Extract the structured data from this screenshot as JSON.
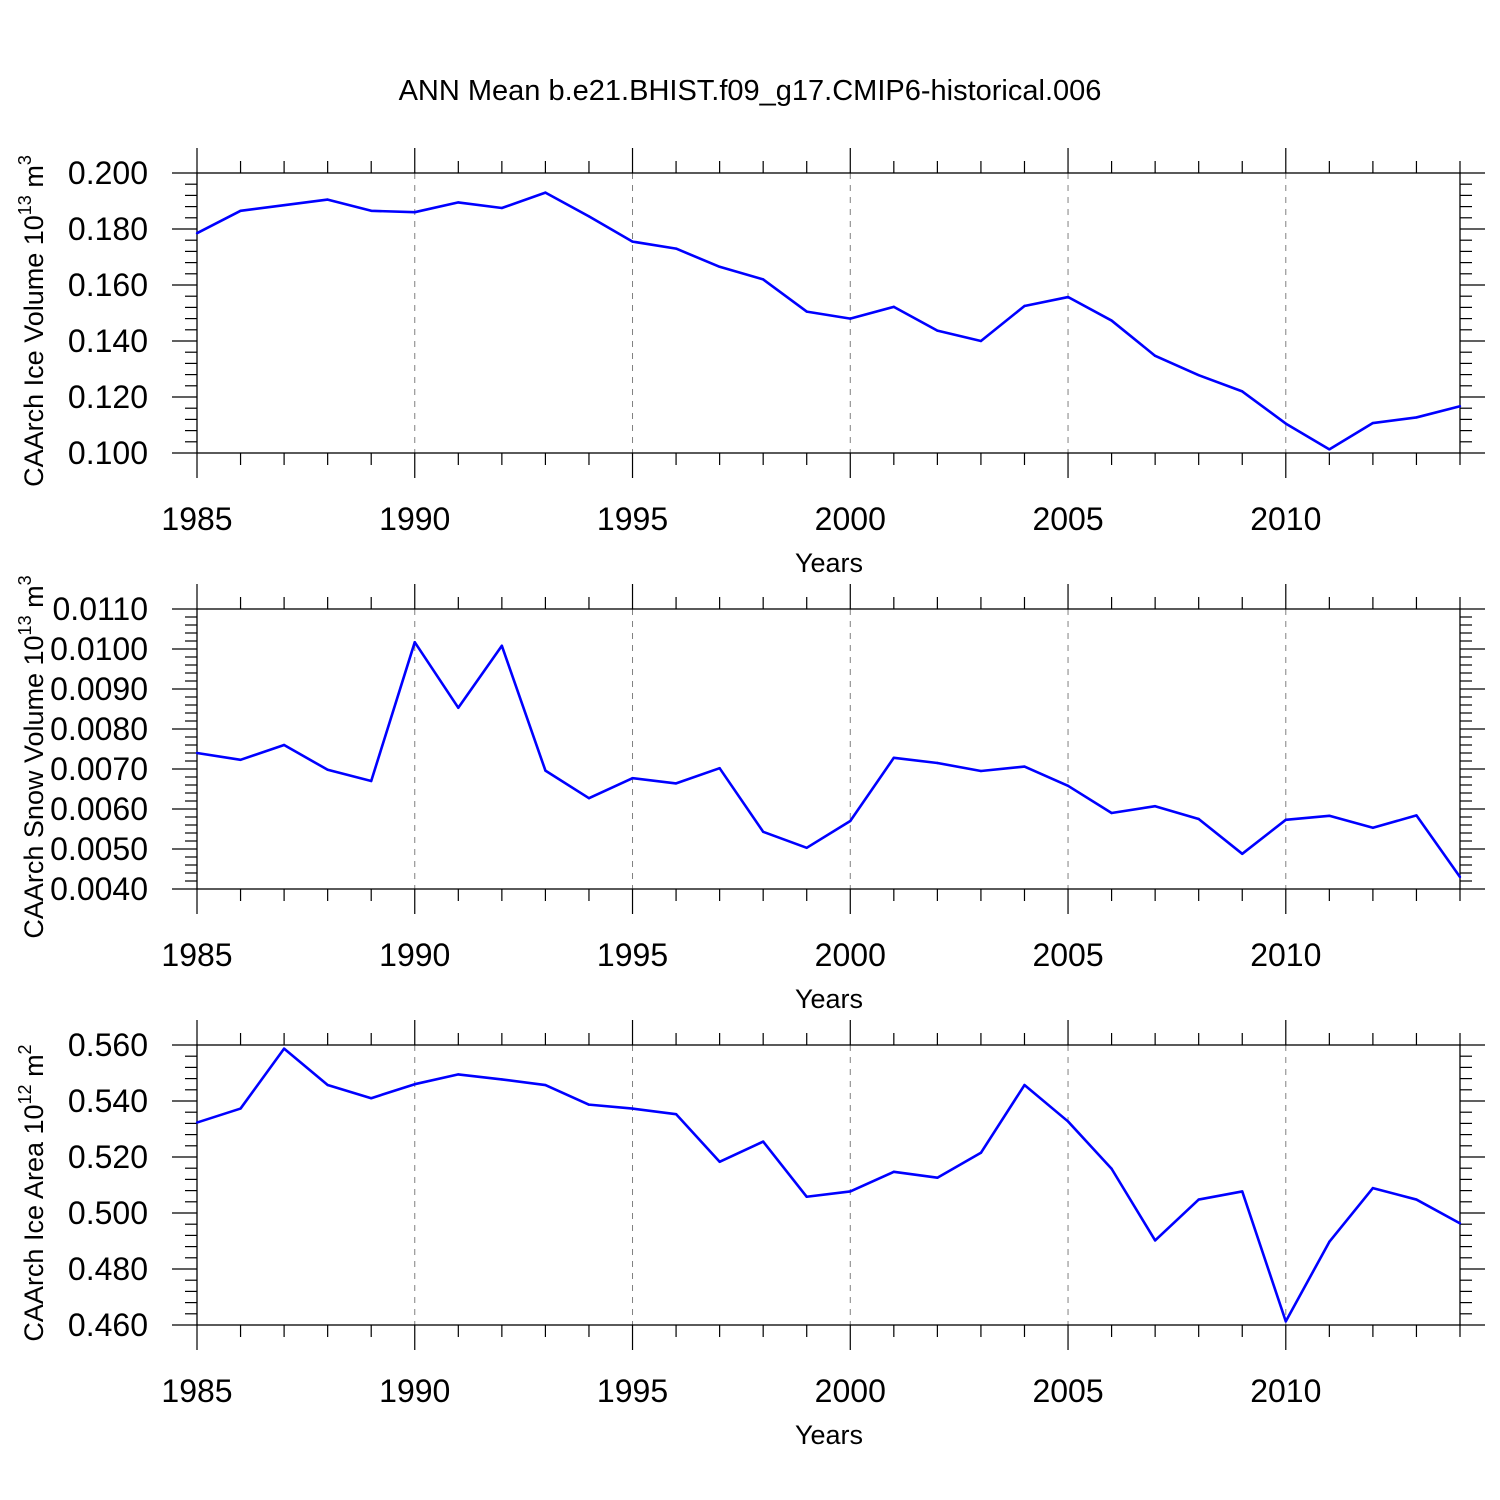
{
  "title": "ANN Mean b.e21.BHIST.f09_g17.CMIP6-historical.006",
  "colors": {
    "line": "#0000ff",
    "axis": "#000000",
    "grid": "#808080"
  },
  "chart_data": [
    {
      "type": "line",
      "ylabel": {
        "base": "CAArch Ice Volume 10",
        "exp": "13",
        "unit": " m",
        "unit_exp": "3"
      },
      "xlabel": "Years",
      "xlim": [
        1985,
        2014
      ],
      "ylim": [
        0.1,
        0.2
      ],
      "x_ticks": [
        "1985",
        "1990",
        "1995",
        "2000",
        "2005",
        "2010"
      ],
      "y_ticks": [
        "0.100",
        "0.120",
        "0.140",
        "0.160",
        "0.180",
        "0.200"
      ],
      "grid": "vertical dashed at major x ticks",
      "series": [
        {
          "name": "Ice Volume",
          "x": [
            1985,
            1986,
            1987,
            1988,
            1989,
            1990,
            1991,
            1992,
            1993,
            1994,
            1995,
            1996,
            1997,
            1998,
            1999,
            2000,
            2001,
            2002,
            2003,
            2004,
            2005,
            2006,
            2007,
            2008,
            2009,
            2010,
            2011,
            2012,
            2013,
            2014
          ],
          "values": [
            0.1785,
            0.1865,
            0.1885,
            0.1905,
            0.1865,
            0.186,
            0.1895,
            0.1875,
            0.193,
            0.1845,
            0.1755,
            0.173,
            0.1665,
            0.162,
            0.1505,
            0.148,
            0.1522,
            0.1437,
            0.14,
            0.1525,
            0.1557,
            0.1473,
            0.1347,
            0.1278,
            0.122,
            0.1105,
            0.1013,
            0.1107,
            0.1127,
            0.1167
          ]
        }
      ]
    },
    {
      "type": "line",
      "ylabel": {
        "base": "CAArch Snow Volume 10",
        "exp": "13",
        "unit": " m",
        "unit_exp": "3"
      },
      "xlabel": "Years",
      "xlim": [
        1985,
        2014
      ],
      "ylim": [
        0.004,
        0.011
      ],
      "x_ticks": [
        "1985",
        "1990",
        "1995",
        "2000",
        "2005",
        "2010"
      ],
      "y_ticks": [
        "0.0040",
        "0.0050",
        "0.0060",
        "0.0070",
        "0.0080",
        "0.0090",
        "0.0100",
        "0.0110"
      ],
      "grid": "vertical dashed at major x ticks",
      "series": [
        {
          "name": "Snow Volume",
          "x": [
            1985,
            1986,
            1987,
            1988,
            1989,
            1990,
            1991,
            1992,
            1993,
            1994,
            1995,
            1996,
            1997,
            1998,
            1999,
            2000,
            2001,
            2002,
            2003,
            2004,
            2005,
            2006,
            2007,
            2008,
            2009,
            2010,
            2011,
            2012,
            2013,
            2014
          ],
          "values": [
            0.0074,
            0.00723,
            0.0076,
            0.00698,
            0.0067,
            0.01017,
            0.00853,
            0.01008,
            0.00696,
            0.00627,
            0.00677,
            0.00664,
            0.00702,
            0.00543,
            0.00503,
            0.0057,
            0.00728,
            0.00715,
            0.00695,
            0.00706,
            0.00658,
            0.0059,
            0.00607,
            0.00575,
            0.00488,
            0.00573,
            0.00583,
            0.00553,
            0.00584,
            0.0043
          ]
        }
      ]
    },
    {
      "type": "line",
      "ylabel": {
        "base": "CAArch Ice Area 10",
        "exp": "12",
        "unit": " m",
        "unit_exp": "2"
      },
      "xlabel": "Years",
      "xlim": [
        1985,
        2014
      ],
      "ylim": [
        0.46,
        0.56
      ],
      "x_ticks": [
        "1985",
        "1990",
        "1995",
        "2000",
        "2005",
        "2010"
      ],
      "y_ticks": [
        "0.460",
        "0.480",
        "0.500",
        "0.520",
        "0.540",
        "0.560"
      ],
      "grid": "vertical dashed at major x ticks",
      "series": [
        {
          "name": "Ice Area",
          "x": [
            1985,
            1986,
            1987,
            1988,
            1989,
            1990,
            1991,
            1992,
            1993,
            1994,
            1995,
            1996,
            1997,
            1998,
            1999,
            2000,
            2001,
            2002,
            2003,
            2004,
            2005,
            2006,
            2007,
            2008,
            2009,
            2010,
            2011,
            2012,
            2013,
            2014
          ],
          "values": [
            0.5323,
            0.5373,
            0.5587,
            0.5457,
            0.541,
            0.546,
            0.5495,
            0.5477,
            0.5457,
            0.5387,
            0.5373,
            0.5353,
            0.5183,
            0.5255,
            0.5058,
            0.5077,
            0.5147,
            0.5126,
            0.5215,
            0.5457,
            0.5327,
            0.5158,
            0.4902,
            0.5048,
            0.5077,
            0.4613,
            0.4897,
            0.5089,
            0.5048,
            0.4963
          ]
        }
      ]
    }
  ]
}
